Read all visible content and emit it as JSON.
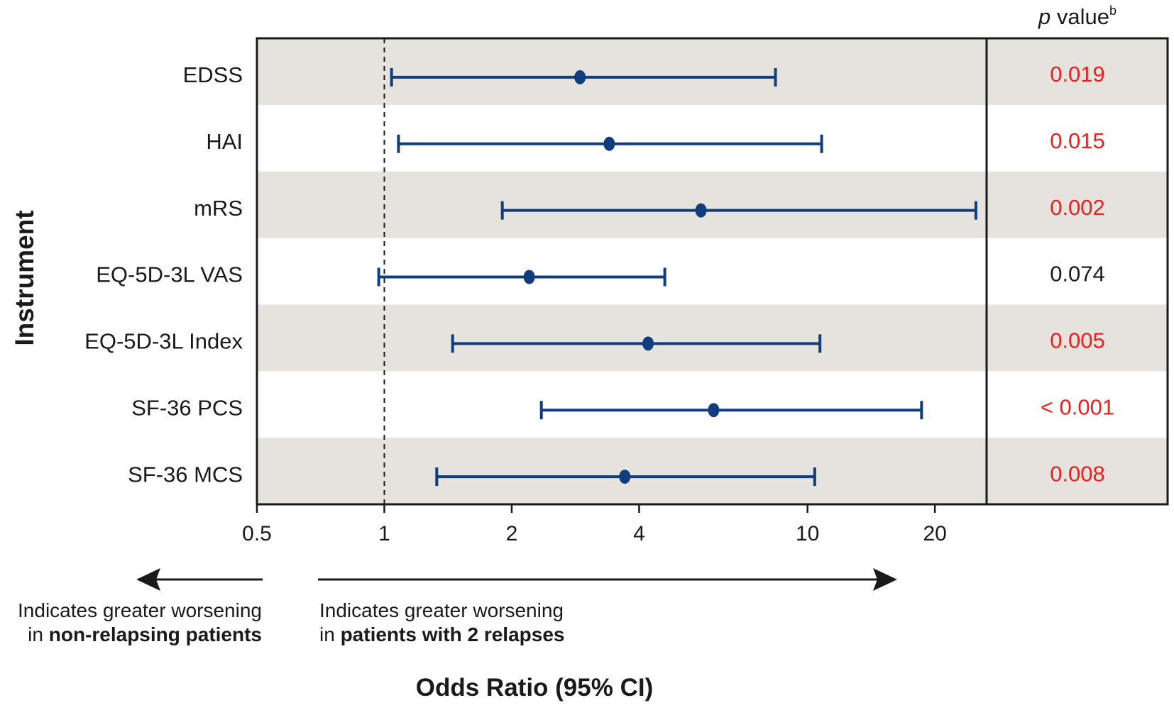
{
  "chart_data": {
    "type": "forest",
    "title": "",
    "ylabel": "Instrument",
    "xlabel": "Odds Ratio (95% CI)",
    "x_scale": "log2",
    "xlim": [
      0.5,
      26.5
    ],
    "x_ticks": [
      0.5,
      1,
      2,
      4,
      10,
      20
    ],
    "x_tick_labels": [
      "0.5",
      "1",
      "2",
      "4",
      "10",
      "20"
    ],
    "reference_line": 1,
    "pvalue_header": {
      "italic": "p",
      "rest": " value",
      "superscript": "b"
    },
    "rows": [
      {
        "label": "EDSS",
        "or": 2.9,
        "ci_low": 1.04,
        "ci_high": 8.4,
        "p": "0.019",
        "significant": true
      },
      {
        "label": "HAI",
        "or": 3.4,
        "ci_low": 1.08,
        "ci_high": 10.8,
        "p": "0.015",
        "significant": true
      },
      {
        "label": "mRS",
        "or": 5.6,
        "ci_low": 1.9,
        "ci_high": 25.0,
        "p": "0.002",
        "significant": true
      },
      {
        "label": "EQ-5D-3L VAS",
        "or": 2.2,
        "ci_low": 0.97,
        "ci_high": 4.6,
        "p": "0.074",
        "significant": false
      },
      {
        "label": "EQ-5D-3L Index",
        "or": 4.2,
        "ci_low": 1.45,
        "ci_high": 10.7,
        "p": "0.005",
        "significant": true
      },
      {
        "label": "SF-36 PCS",
        "or": 6.0,
        "ci_low": 2.35,
        "ci_high": 18.6,
        "p": "< 0.001",
        "significant": true
      },
      {
        "label": "SF-36 MCS",
        "or": 3.7,
        "ci_low": 1.33,
        "ci_high": 10.4,
        "p": "0.008",
        "significant": true
      }
    ],
    "annotations": {
      "left": {
        "line1": "Indicates greater worsening",
        "line2_prefix": "in ",
        "line2_bold": "non-relapsing patients"
      },
      "right": {
        "line1": "Indicates greater worsening",
        "line2_prefix": "in ",
        "line2_bold": "patients with 2 relapses"
      }
    }
  },
  "colors": {
    "series": "#0f3d7e",
    "significant_p": "#e8201e",
    "nonsignificant_p": "#1a1a1a",
    "band": "#e6e3de",
    "axis": "#1a1a1a"
  }
}
